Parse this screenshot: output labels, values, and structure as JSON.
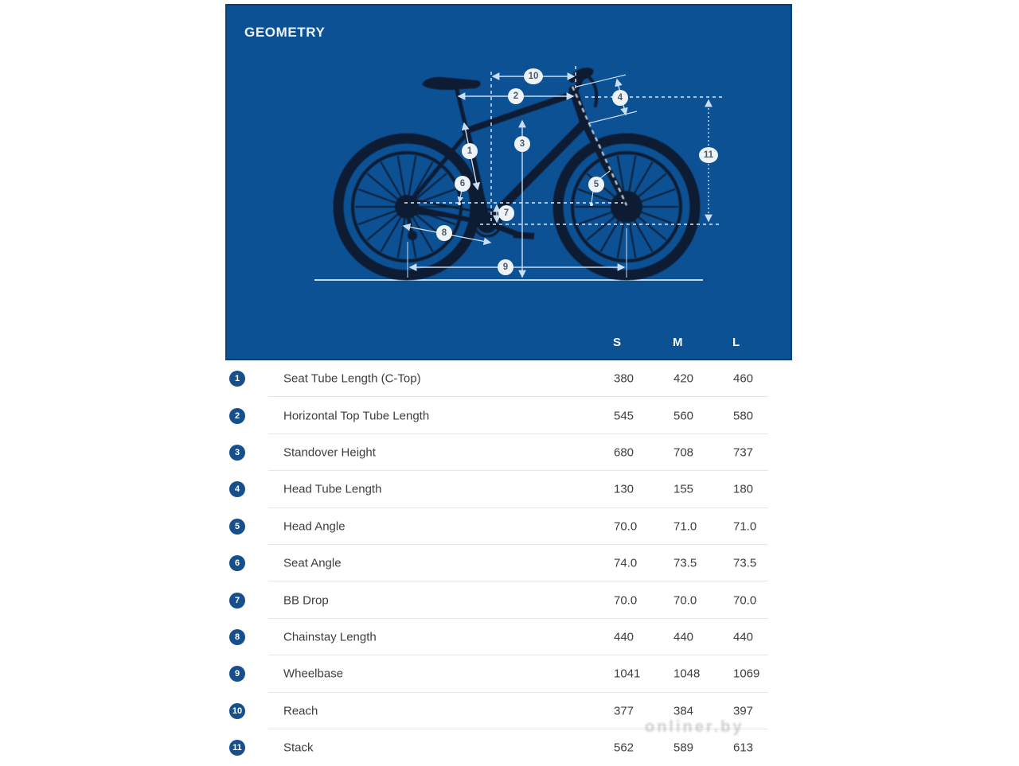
{
  "hero": {
    "title": "GEOMETRY"
  },
  "diagram": {
    "badges": [
      "1",
      "2",
      "3",
      "4",
      "5",
      "6",
      "7",
      "8",
      "9",
      "10",
      "11"
    ]
  },
  "table": {
    "size_headers": [
      "S",
      "M",
      "L"
    ],
    "rows": [
      {
        "num": "1",
        "label": "Seat Tube Length (C-Top)",
        "s": "380",
        "m": "420",
        "l": "460"
      },
      {
        "num": "2",
        "label": "Horizontal Top Tube Length",
        "s": "545",
        "m": "560",
        "l": "580"
      },
      {
        "num": "3",
        "label": "Standover Height",
        "s": "680",
        "m": "708",
        "l": "737"
      },
      {
        "num": "4",
        "label": "Head Tube Length",
        "s": "130",
        "m": "155",
        "l": "180"
      },
      {
        "num": "5",
        "label": "Head Angle",
        "s": "70.0",
        "m": "71.0",
        "l": "71.0"
      },
      {
        "num": "6",
        "label": "Seat Angle",
        "s": "74.0",
        "m": "73.5",
        "l": "73.5"
      },
      {
        "num": "7",
        "label": "BB Drop",
        "s": "70.0",
        "m": "70.0",
        "l": "70.0"
      },
      {
        "num": "8",
        "label": "Chainstay Length",
        "s": "440",
        "m": "440",
        "l": "440"
      },
      {
        "num": "9",
        "label": "Wheelbase",
        "s": "1041",
        "m": "1048",
        "l": "1069"
      },
      {
        "num": "10",
        "label": "Reach",
        "s": "377",
        "m": "384",
        "l": "397"
      },
      {
        "num": "11",
        "label": "Stack",
        "s": "562",
        "m": "589",
        "l": "613"
      }
    ]
  },
  "watermark": {
    "text": "onliner.by"
  },
  "colors": {
    "hero_bg": "#0d5195",
    "hero_border": "#0c4074",
    "row_badge_blue": "#174f8d",
    "table_text": "#3e3e3e",
    "separator": "#e6e6e6",
    "measure_line": "#c9def2",
    "bike_silhouette": "#0c1b30",
    "diagram_badge_fill": "#eef3f8",
    "diagram_badge_text": "#4d5b6b"
  }
}
